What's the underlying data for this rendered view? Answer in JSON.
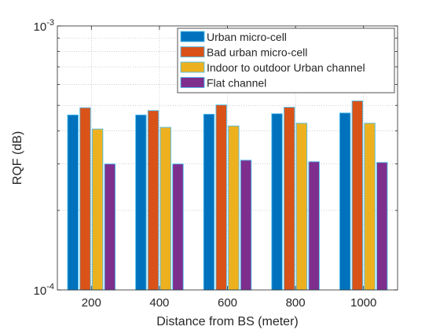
{
  "chart_data": {
    "type": "bar",
    "xlabel": "Distance from BS (meter)",
    "ylabel": "RQF (dB)",
    "yscale": "log",
    "ylim": [
      0.0001,
      0.001
    ],
    "ytick_labels": [
      {
        "value": 0.0001,
        "base": "10",
        "exp": "-4"
      },
      {
        "value": 0.001,
        "base": "10",
        "exp": "-3"
      }
    ],
    "categories": [
      "200",
      "400",
      "600",
      "800",
      "1000"
    ],
    "grid": true,
    "legend_position": "top-right",
    "series": [
      {
        "name": "Urban micro-cell",
        "color": "#0072BD",
        "values": [
          0.00046,
          0.00046,
          0.000463,
          0.000465,
          0.000468
        ]
      },
      {
        "name": "Bad urban micro-cell",
        "color": "#D95319",
        "values": [
          0.00049,
          0.000478,
          0.000502,
          0.000492,
          0.00052
        ]
      },
      {
        "name": "Indoor to outdoor Urban channel",
        "color": "#EDB120",
        "values": [
          0.000407,
          0.000413,
          0.000418,
          0.000428,
          0.000428
        ]
      },
      {
        "name": "Flat channel",
        "color": "#7E2F8E",
        "values": [
          0.0003,
          0.0003,
          0.00031,
          0.000306,
          0.000304
        ]
      }
    ],
    "bar_edge_color": "#4DBEEE"
  }
}
